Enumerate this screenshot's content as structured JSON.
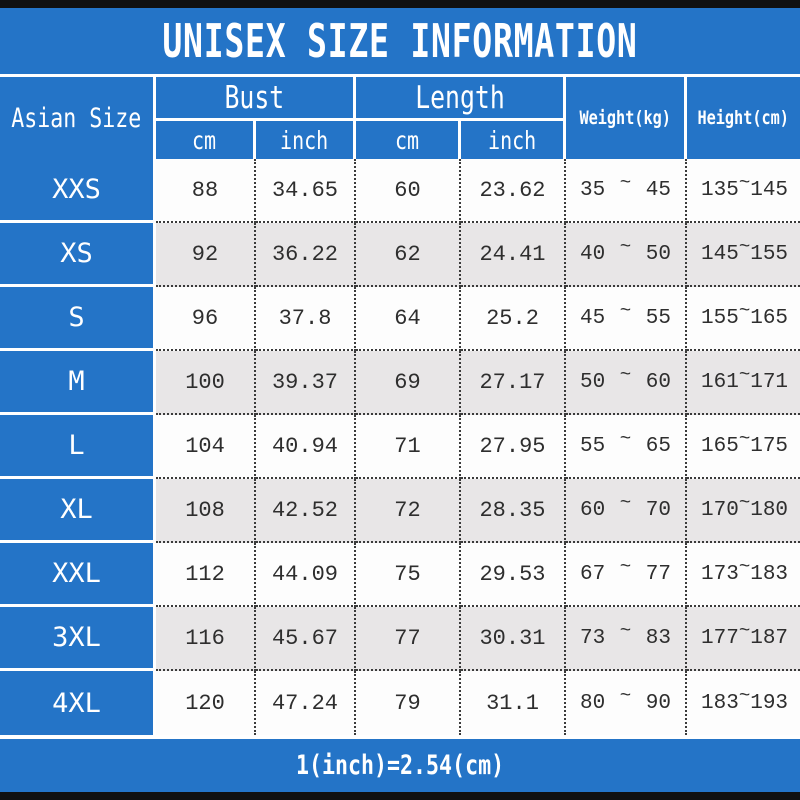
{
  "title": "UNISEX SIZE INFORMATION",
  "footer_note": "1(inch)=2.54(cm)",
  "tilde": "~",
  "header": {
    "size": "Asian Size",
    "bust": "Bust",
    "length": "Length",
    "cm": "cm",
    "inch": "inch",
    "weight": "Weight(kg)",
    "height": "Height(cm)"
  },
  "colors": {
    "blue": "#2474c7",
    "gray_row": "#e8e6e7",
    "white_row": "#fdfdfd",
    "bar_black": "#101010",
    "dotted_border": "#3a3a3a",
    "data_text": "#2e2e2e",
    "header_text": "#ffffff"
  },
  "chart_data": {
    "type": "table",
    "title": "UNISEX SIZE INFORMATION",
    "columns": [
      "Asian Size",
      "Bust cm",
      "Bust inch",
      "Length cm",
      "Length inch",
      "Weight(kg)",
      "Height(cm)"
    ],
    "rows": [
      {
        "size": "XXS",
        "bust_cm": "88",
        "bust_inch": "34.65",
        "length_cm": "60",
        "length_inch": "23.62",
        "weight_kg": "35~45",
        "height_cm": "135~145"
      },
      {
        "size": "XS",
        "bust_cm": "92",
        "bust_inch": "36.22",
        "length_cm": "62",
        "length_inch": "24.41",
        "weight_kg": "40~50",
        "height_cm": "145~155"
      },
      {
        "size": "S",
        "bust_cm": "96",
        "bust_inch": "37.8",
        "length_cm": "64",
        "length_inch": "25.2",
        "weight_kg": "45~55",
        "height_cm": "155~165"
      },
      {
        "size": "M",
        "bust_cm": "100",
        "bust_inch": "39.37",
        "length_cm": "69",
        "length_inch": "27.17",
        "weight_kg": "50~60",
        "height_cm": "161~171"
      },
      {
        "size": "L",
        "bust_cm": "104",
        "bust_inch": "40.94",
        "length_cm": "71",
        "length_inch": "27.95",
        "weight_kg": "55~65",
        "height_cm": "165~175"
      },
      {
        "size": "XL",
        "bust_cm": "108",
        "bust_inch": "42.52",
        "length_cm": "72",
        "length_inch": "28.35",
        "weight_kg": "60~70",
        "height_cm": "170~180"
      },
      {
        "size": "XXL",
        "bust_cm": "112",
        "bust_inch": "44.09",
        "length_cm": "75",
        "length_inch": "29.53",
        "weight_kg": "67~77",
        "height_cm": "173~183"
      },
      {
        "size": "3XL",
        "bust_cm": "116",
        "bust_inch": "45.67",
        "length_cm": "77",
        "length_inch": "30.31",
        "weight_kg": "73~83",
        "height_cm": "177~187"
      },
      {
        "size": "4XL",
        "bust_cm": "120",
        "bust_inch": "47.24",
        "length_cm": "79",
        "length_inch": "31.1",
        "weight_kg": "80~90",
        "height_cm": "183~193"
      }
    ],
    "note": "1(inch)=2.54(cm)"
  }
}
